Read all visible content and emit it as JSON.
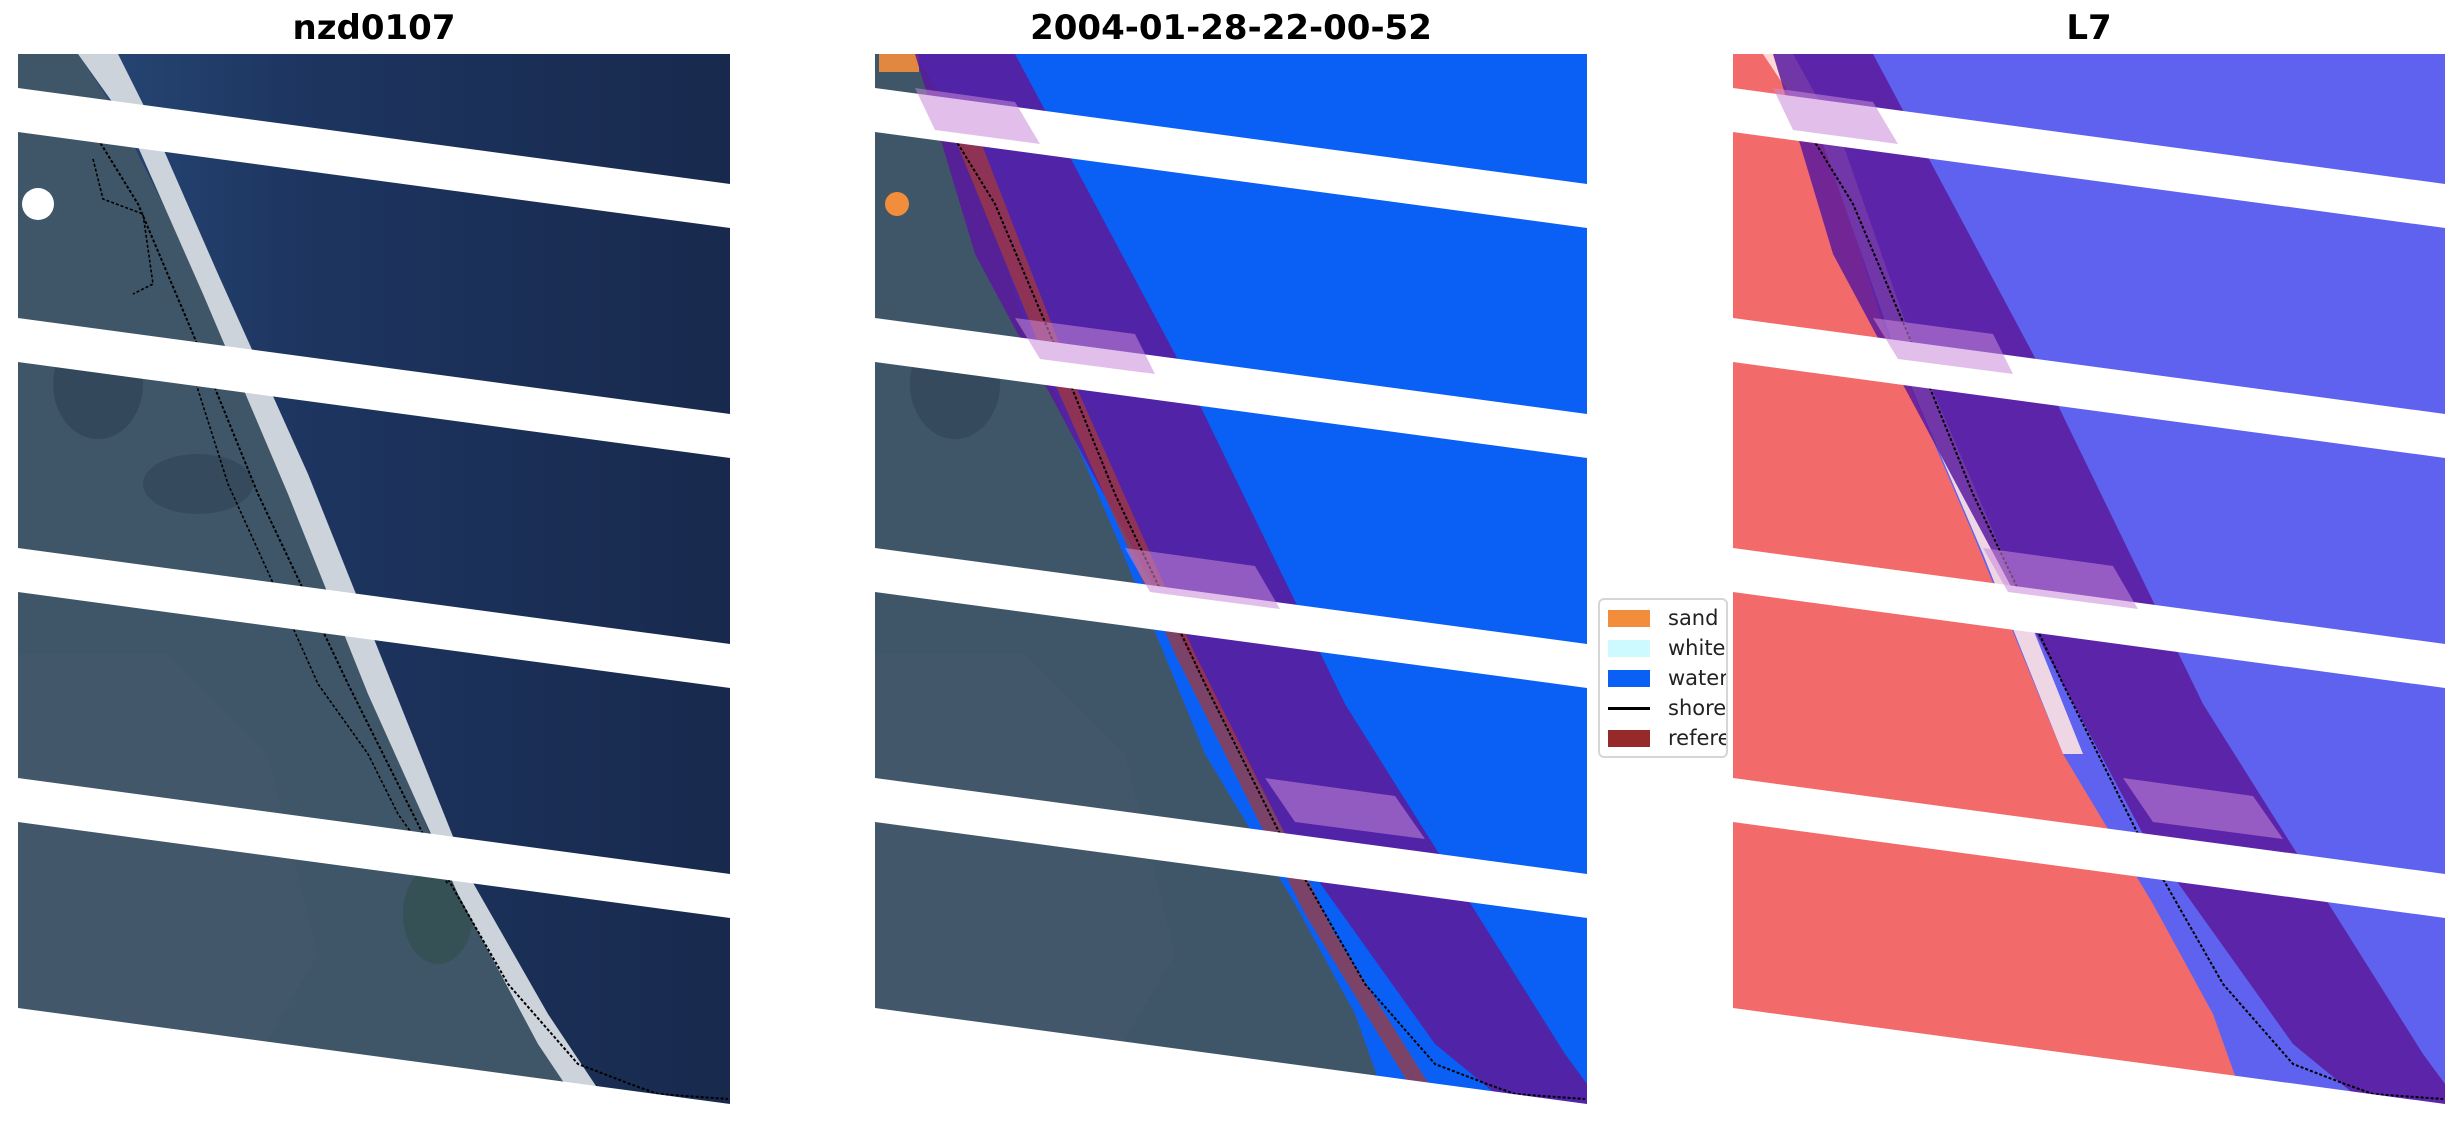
{
  "panels": [
    {
      "title": "nzd0107"
    },
    {
      "title": "2004-01-28-22-00-52"
    },
    {
      "title": "L7"
    }
  ],
  "legend": {
    "items": [
      {
        "label": "sand",
        "color": "#f28d3c",
        "kind": "patch"
      },
      {
        "label": "whitewater",
        "color": "#ccfaff",
        "kind": "patch"
      },
      {
        "label": "water",
        "color": "#0a60f5",
        "kind": "patch"
      },
      {
        "label": "shoreline",
        "color": "#000000",
        "kind": "line"
      },
      {
        "label": "reference shoreline buffer",
        "color": "#962a2a",
        "kind": "patch"
      }
    ]
  },
  "colors": {
    "ocean": "#1a2d52",
    "land": "#3e5567",
    "beach": "#c9cfd6",
    "classified_water": "#0a60f5",
    "buffer": "#5a1a9c",
    "index_water": "#5e62ee",
    "index_land": "#f36a6a",
    "scan_gap": "#ffffff"
  }
}
